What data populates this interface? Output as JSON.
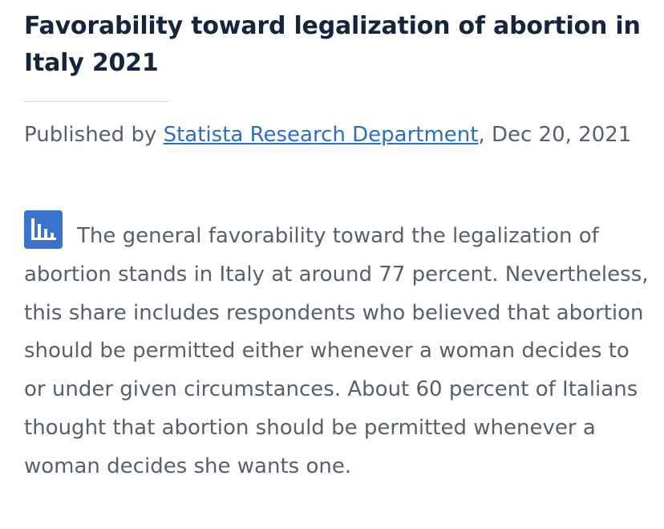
{
  "article": {
    "title": "Favorability toward legalization of abortion in Italy 2021",
    "byline": {
      "prefix": "Published by ",
      "author": "Statista Research Department",
      "date": ", Dec 20, 2021"
    },
    "icon": "bar-chart-icon",
    "body": "The general favorability toward the legalization of abortion stands in Italy at around 77 percent. Nevertheless, this share includes respondents who believed that abortion should be permitted either whenever a woman decides to or under given circumstances. About 60 percent of Italians thought that abortion should be permitted whenever a woman decides she wants one."
  },
  "colors": {
    "title": "#14263d",
    "text": "#5a6068",
    "link": "#2d6fc4",
    "icon_bg": "#3a74cf"
  }
}
